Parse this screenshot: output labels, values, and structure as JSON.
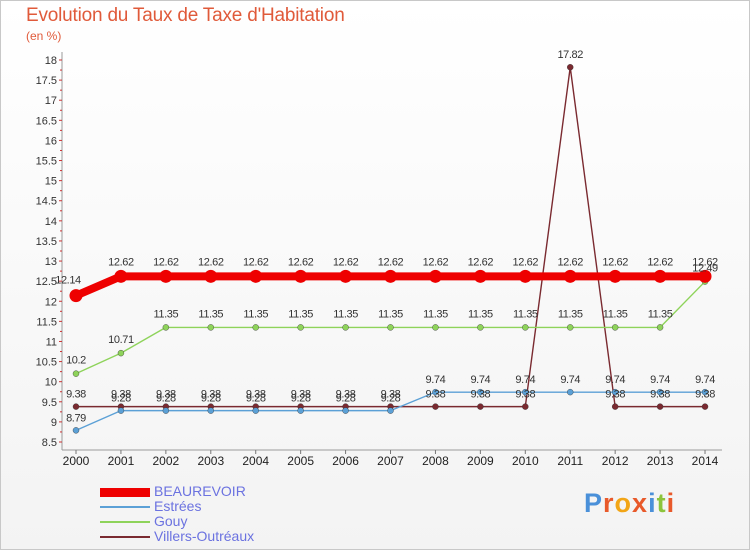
{
  "title": "Evolution du Taux de Taxe d'Habitation",
  "subtitle": "(en %)",
  "logo": {
    "text": "Proxiti",
    "letter_colors": [
      "#4a90d9",
      "#e8592a",
      "#f2a516",
      "#e8592a",
      "#4a90d9",
      "#8cc43c",
      "#e8592a"
    ]
  },
  "chart_data": {
    "type": "line",
    "x": [
      "2000",
      "2001",
      "2002",
      "2003",
      "2004",
      "2005",
      "2006",
      "2007",
      "2008",
      "2009",
      "2010",
      "2011",
      "2012",
      "2013",
      "2014"
    ],
    "ylim": [
      8.5,
      18
    ],
    "yticks": [
      "8.5",
      "9",
      "9.5",
      "10",
      "10.5",
      "11",
      "11.5",
      "12",
      "12.5",
      "13",
      "13.5",
      "14",
      "14.5",
      "15",
      "15.5",
      "16",
      "16.5",
      "17",
      "17.5",
      "18"
    ],
    "grid": false,
    "legend_position": "bottom-left",
    "series": [
      {
        "name": "BEAUREVOIR",
        "color": "#ee0000",
        "values": [
          12.14,
          12.62,
          12.62,
          12.62,
          12.62,
          12.62,
          12.62,
          12.62,
          12.62,
          12.62,
          12.62,
          12.62,
          12.62,
          12.62,
          12.62
        ],
        "labels": [
          "12.14",
          "12.62",
          "12.62",
          "12.62",
          "12.62",
          "12.62",
          "12.62",
          "12.62",
          "12.62",
          "12.62",
          "12.62",
          "12.62",
          "12.62",
          "12.62",
          "12.62"
        ]
      },
      {
        "name": "Estrées",
        "color": "#5ba0d6",
        "values": [
          8.79,
          9.28,
          9.28,
          9.28,
          9.28,
          9.28,
          9.28,
          9.28,
          9.74,
          9.74,
          9.74,
          9.74,
          9.74,
          9.74,
          9.74
        ],
        "labels": [
          "8.79",
          "9.28",
          "9.28",
          "9.28",
          "9.28",
          "9.28",
          "9.28",
          "9.28",
          "9.74",
          "9.74",
          "9.74",
          "9.74",
          "9.74",
          "9.74",
          "9.74"
        ]
      },
      {
        "name": "Gouy",
        "color": "#8ed35a",
        "values": [
          10.2,
          10.71,
          11.35,
          11.35,
          11.35,
          11.35,
          11.35,
          11.35,
          11.35,
          11.35,
          11.35,
          11.35,
          11.35,
          11.35,
          12.49
        ],
        "labels": [
          "10.2",
          "10.71",
          "11.35",
          "11.35",
          "11.35",
          "11.35",
          "11.35",
          "11.35",
          "11.35",
          "11.35",
          "11.35",
          "11.35",
          "11.35",
          "11.35",
          "12.49"
        ]
      },
      {
        "name": "Villers-Outréaux",
        "color": "#7a2a30",
        "values": [
          9.38,
          9.38,
          9.38,
          9.38,
          9.38,
          9.38,
          9.38,
          9.38,
          9.38,
          9.38,
          9.38,
          17.82,
          9.38,
          9.38,
          9.38
        ],
        "labels": [
          "9.38",
          "9.38",
          "9.38",
          "9.38",
          "9.38",
          "9.38",
          "9.38",
          "9.38",
          "9.38",
          "9.38",
          "9.38",
          "17.82",
          "9.38",
          "9.38",
          "9.38"
        ]
      }
    ]
  }
}
